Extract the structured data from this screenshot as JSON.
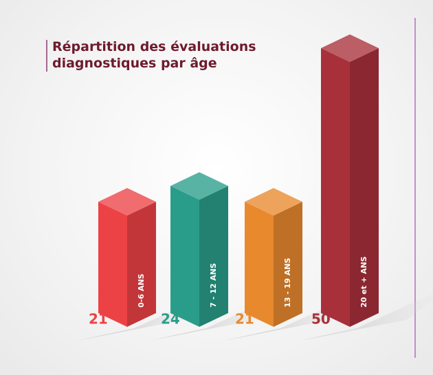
{
  "chart_data": {
    "type": "bar3d",
    "title": "Répartition des évaluations diagnostiques par âge",
    "categories": [
      "0-6 ANS",
      "7 - 12 ANS",
      "13 - 19 ANS",
      "20 et + ANS"
    ],
    "values": [
      21,
      24,
      21,
      50
    ],
    "colors": [
      "#ec4246",
      "#2a9d8a",
      "#e8892e",
      "#a8303a"
    ]
  }
}
